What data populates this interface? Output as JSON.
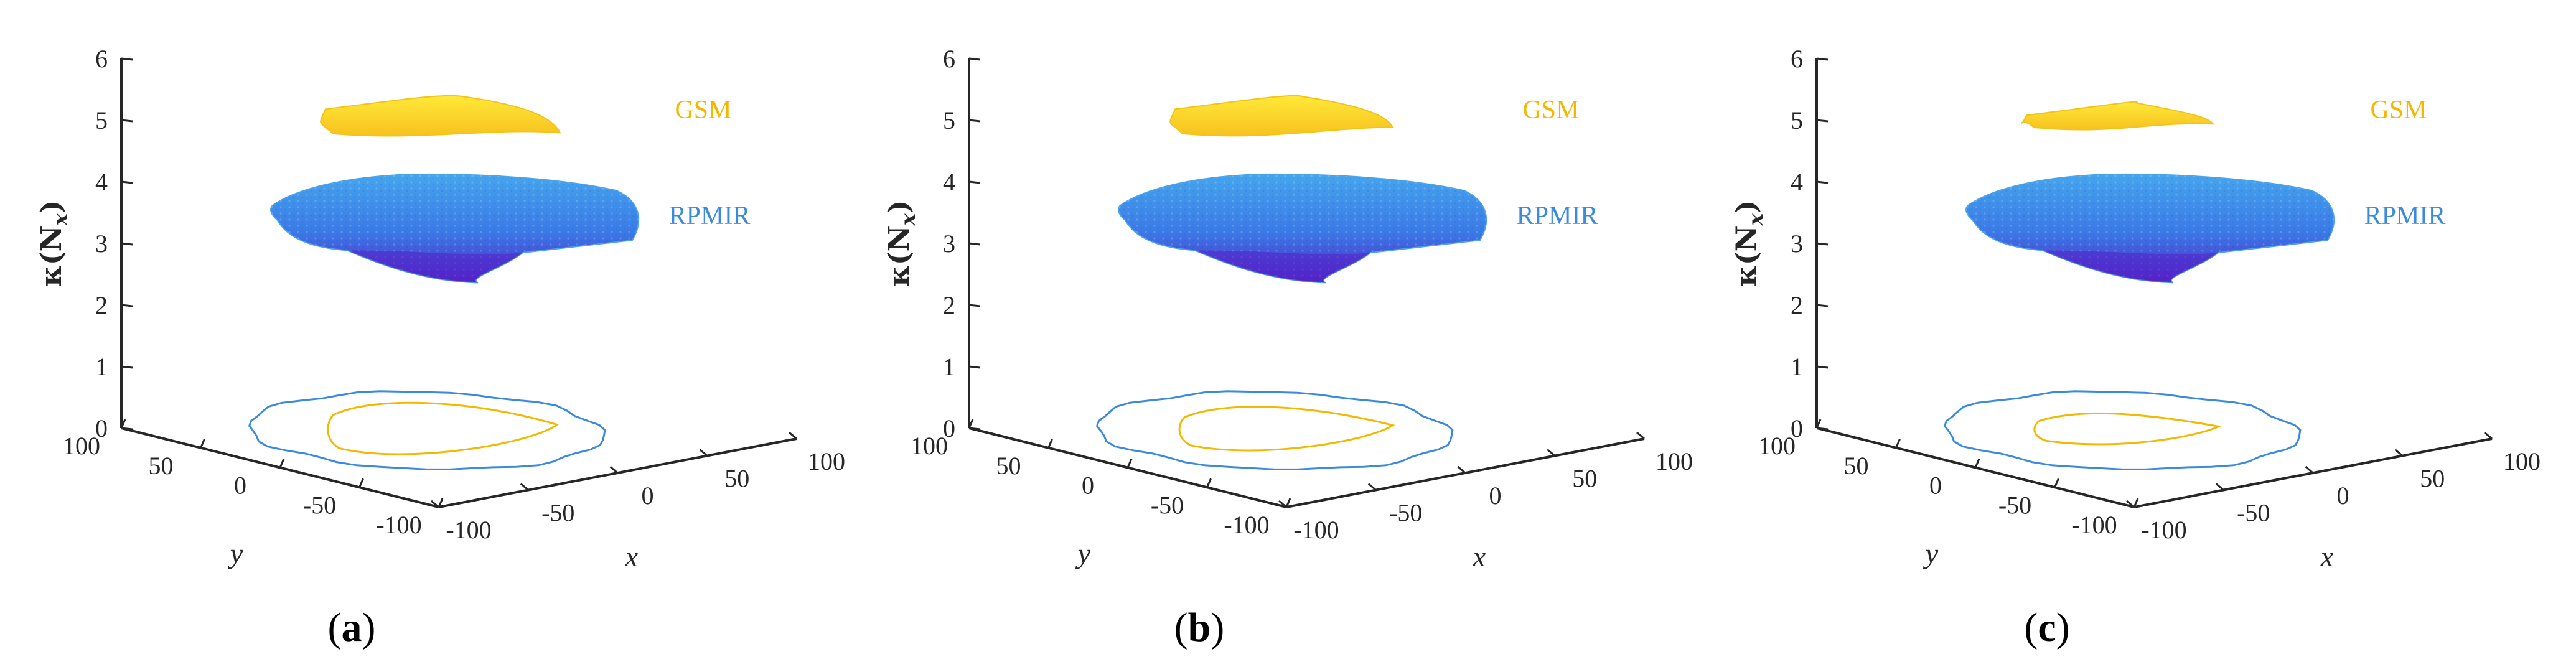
{
  "figure": {
    "colors": {
      "gsm": "#f5b800",
      "rpmir": "#3a8ae0",
      "axis": "#262626",
      "surface_gsm_top": "#ffe838",
      "surface_gsm_bottom": "#f7c21e",
      "surface_rpmir_top": "#45a6ee",
      "surface_rpmir_mid": "#3a78e6",
      "surface_rpmir_bottom": "#5322c8"
    }
  },
  "chart_data": [
    {
      "type": "3d-surface",
      "caption": "a",
      "zlabel": "κ(N",
      "zlabel_sub": "x",
      "zlabel_close": ")",
      "xlabel": "x",
      "ylabel": "y",
      "zlim": [
        0,
        6
      ],
      "z_ticks": [
        "0",
        "1",
        "2",
        "3",
        "4",
        "5",
        "6"
      ],
      "x_ticks": [
        "-100",
        "-50",
        "0",
        "50",
        "100"
      ],
      "y_ticks": [
        "100",
        "50",
        "0",
        "-50",
        "-100"
      ],
      "series": [
        {
          "name": "GSM",
          "label": "GSM",
          "z_min": 4.8,
          "z_max": 5.4,
          "width_scale": 1.0,
          "height_scale": 1.0
        },
        {
          "name": "RPMIR",
          "label": "RPMIR",
          "z_min": 2.4,
          "z_max": 4.1,
          "width_scale": 1.0,
          "height_scale": 1.0
        }
      ]
    },
    {
      "type": "3d-surface",
      "caption": "b",
      "zlabel": "κ(N",
      "zlabel_sub": "x",
      "zlabel_close": ")",
      "xlabel": "x",
      "ylabel": "y",
      "zlim": [
        0,
        6
      ],
      "z_ticks": [
        "0",
        "1",
        "2",
        "3",
        "4",
        "5",
        "6"
      ],
      "x_ticks": [
        "-100",
        "-50",
        "0",
        "50",
        "100"
      ],
      "y_ticks": [
        "100",
        "50",
        "0",
        "-50",
        "-100"
      ],
      "series": [
        {
          "name": "GSM",
          "label": "GSM",
          "z_min": 4.8,
          "z_max": 5.4,
          "width_scale": 0.93,
          "height_scale": 0.85
        },
        {
          "name": "RPMIR",
          "label": "RPMIR",
          "z_min": 2.4,
          "z_max": 4.1,
          "width_scale": 1.0,
          "height_scale": 1.0
        }
      ]
    },
    {
      "type": "3d-surface",
      "caption": "c",
      "zlabel": "κ(N",
      "zlabel_sub": "x",
      "zlabel_close": ")",
      "xlabel": "x",
      "ylabel": "y",
      "zlim": [
        0,
        6
      ],
      "z_ticks": [
        "0",
        "1",
        "2",
        "3",
        "4",
        "5",
        "6"
      ],
      "x_ticks": [
        "-100",
        "-50",
        "0",
        "50",
        "100"
      ],
      "y_ticks": [
        "100",
        "50",
        "0",
        "-50",
        "-100"
      ],
      "series": [
        {
          "name": "GSM",
          "label": "GSM",
          "z_min": 4.9,
          "z_max": 5.3,
          "width_scale": 0.8,
          "height_scale": 0.6
        },
        {
          "name": "RPMIR",
          "label": "RPMIR",
          "z_min": 2.4,
          "z_max": 4.1,
          "width_scale": 1.0,
          "height_scale": 1.0
        }
      ]
    }
  ]
}
